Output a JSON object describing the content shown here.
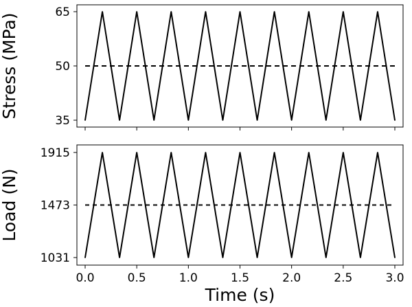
{
  "chart_data": [
    {
      "type": "line",
      "title": "",
      "xlabel": "",
      "ylabel": "Stress (MPa)",
      "xlim": [
        0.0,
        3.0
      ],
      "ylim": [
        35,
        65
      ],
      "yticks": [
        35,
        50,
        65
      ],
      "ytick_labels": [
        "35",
        "50",
        "65"
      ],
      "xtick_labels": [],
      "grid": false,
      "series": [
        {
          "style": "solid",
          "x": [
            0.0,
            0.1667,
            0.3333,
            0.5,
            0.6667,
            0.8333,
            1.0,
            1.1667,
            1.3333,
            1.5,
            1.6667,
            1.8333,
            2.0,
            2.1667,
            2.3333,
            2.5,
            2.6667,
            2.8333,
            3.0
          ],
          "y": [
            35,
            65,
            35,
            65,
            35,
            65,
            35,
            65,
            35,
            65,
            35,
            65,
            35,
            65,
            35,
            65,
            35,
            65,
            35
          ]
        },
        {
          "style": "dashed",
          "x": [
            0.0,
            3.0
          ],
          "y": [
            50,
            50
          ]
        }
      ]
    },
    {
      "type": "line",
      "title": "",
      "xlabel": "Time (s)",
      "ylabel": "Load (N)",
      "xlim": [
        0.0,
        3.0
      ],
      "ylim": [
        1031,
        1915
      ],
      "yticks": [
        1031,
        1473,
        1915
      ],
      "ytick_labels": [
        "1031",
        "1473",
        "1915"
      ],
      "xticks": [
        0.0,
        0.5,
        1.0,
        1.5,
        2.0,
        2.5,
        3.0
      ],
      "xtick_labels": [
        "0.0",
        "0.5",
        "1.0",
        "1.5",
        "2.0",
        "2.5",
        "3.0"
      ],
      "grid": false,
      "series": [
        {
          "style": "solid",
          "x": [
            0.0,
            0.1667,
            0.3333,
            0.5,
            0.6667,
            0.8333,
            1.0,
            1.1667,
            1.3333,
            1.5,
            1.6667,
            1.8333,
            2.0,
            2.1667,
            2.3333,
            2.5,
            2.6667,
            2.8333,
            3.0
          ],
          "y": [
            1031,
            1915,
            1031,
            1915,
            1031,
            1915,
            1031,
            1915,
            1031,
            1915,
            1031,
            1915,
            1031,
            1915,
            1031,
            1915,
            1031,
            1915,
            1031
          ]
        },
        {
          "style": "dashed",
          "x": [
            0.0,
            3.0
          ],
          "y": [
            1473,
            1473
          ]
        }
      ]
    }
  ]
}
